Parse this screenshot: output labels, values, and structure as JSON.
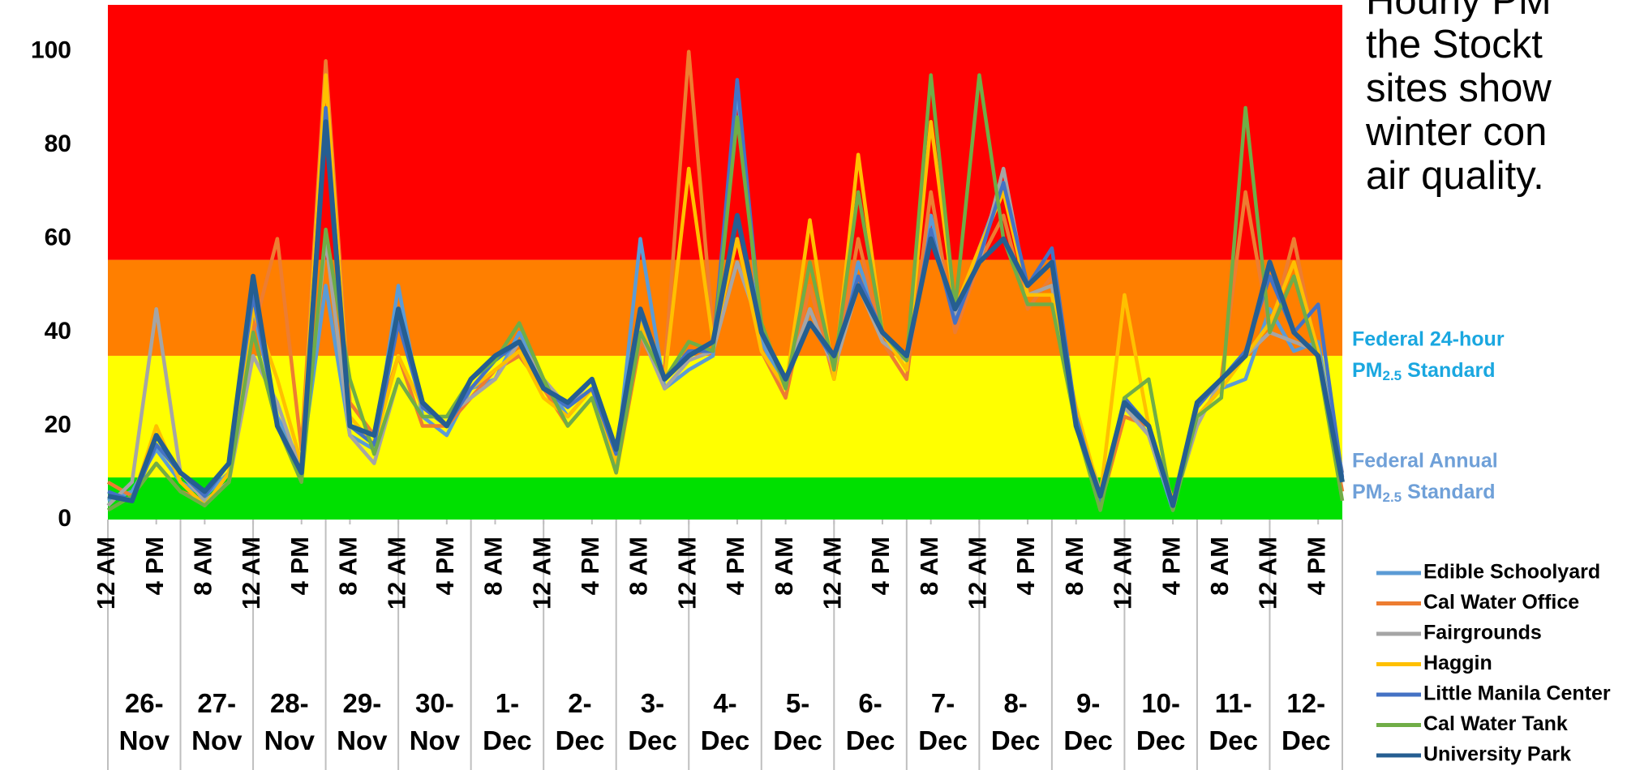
{
  "chart_data": {
    "type": "line",
    "annotation_lines": [
      "Hourly PM",
      "the Stockt",
      "sites show",
      "winter con",
      "air quality."
    ],
    "x": [
      0,
      8,
      16,
      24,
      32,
      40,
      48,
      56,
      64,
      72,
      80,
      88,
      96,
      104,
      112,
      120,
      128,
      136,
      144,
      152,
      160,
      168,
      176,
      184,
      192,
      200,
      208,
      216,
      224,
      232,
      240,
      248,
      256,
      264,
      272,
      280,
      288,
      296,
      304,
      312,
      320,
      328,
      336,
      344,
      352,
      360,
      368,
      376,
      384,
      392,
      400,
      408
    ],
    "xlim": [
      0,
      408
    ],
    "xticks": [
      {
        "value": 0,
        "label": "12 AM"
      },
      {
        "value": 16,
        "label": "4 PM"
      },
      {
        "value": 32,
        "label": "8 AM"
      },
      {
        "value": 48,
        "label": "12 AM"
      },
      {
        "value": 64,
        "label": "4 PM"
      },
      {
        "value": 80,
        "label": "8 AM"
      },
      {
        "value": 96,
        "label": "12 AM"
      },
      {
        "value": 112,
        "label": "4 PM"
      },
      {
        "value": 128,
        "label": "8 AM"
      },
      {
        "value": 144,
        "label": "12 AM"
      },
      {
        "value": 160,
        "label": "4 PM"
      },
      {
        "value": 176,
        "label": "8 AM"
      },
      {
        "value": 192,
        "label": "12 AM"
      },
      {
        "value": 208,
        "label": "4 PM"
      },
      {
        "value": 224,
        "label": "8 AM"
      },
      {
        "value": 240,
        "label": "12 AM"
      },
      {
        "value": 256,
        "label": "4 PM"
      },
      {
        "value": 272,
        "label": "8 AM"
      },
      {
        "value": 288,
        "label": "12 AM"
      },
      {
        "value": 304,
        "label": "4 PM"
      },
      {
        "value": 320,
        "label": "8 AM"
      },
      {
        "value": 336,
        "label": "12 AM"
      },
      {
        "value": 352,
        "label": "4 PM"
      },
      {
        "value": 368,
        "label": "8 AM"
      },
      {
        "value": 384,
        "label": "12 AM"
      },
      {
        "value": 400,
        "label": "4 PM"
      }
    ],
    "days": [
      "26- Nov",
      "27- Nov",
      "28- Nov",
      "29- Nov",
      "30- Nov",
      "1- Dec",
      "2- Dec",
      "3- Dec",
      "4- Dec",
      "5- Dec",
      "6- Dec",
      "7- Dec",
      "8- Dec",
      "9- Dec",
      "10- Dec",
      "11- Dec",
      "12- Dec"
    ],
    "ylim": [
      0,
      110
    ],
    "yticks": [
      0,
      20,
      40,
      60,
      80,
      100
    ],
    "bands": [
      {
        "from": 0,
        "to": 9,
        "color": "#00e000"
      },
      {
        "from": 9,
        "to": 35,
        "color": "#ffff00"
      },
      {
        "from": 35,
        "to": 55.5,
        "color": "#ff7f00"
      },
      {
        "from": 55.5,
        "to": 110,
        "color": "#ff0000"
      }
    ],
    "standards": [
      {
        "label": "Federal 24-hour",
        "pm": "PM",
        "sub": "2.5",
        "suffix": "Standard",
        "value": 35,
        "color": "#1aa7e0"
      },
      {
        "label": "Federal Annual",
        "pm": "PM",
        "sub": "2.5",
        "suffix": "Standard",
        "value": 9,
        "color": "#6fa0d8"
      }
    ],
    "series": [
      {
        "name": "Edible Schoolyard",
        "color": "#5b9bd5",
        "values": [
          4,
          6,
          15,
          8,
          5,
          10,
          45,
          22,
          12,
          50,
          18,
          15,
          50,
          22,
          18,
          28,
          30,
          40,
          30,
          22,
          28,
          12,
          60,
          28,
          32,
          35,
          92,
          38,
          28,
          45,
          33,
          55,
          40,
          32,
          65,
          42,
          58,
          72,
          48,
          50,
          22,
          4,
          25,
          18,
          2,
          22,
          28,
          30,
          45,
          36,
          38,
          8
        ]
      },
      {
        "name": "Cal Water Office",
        "color": "#ed7d31",
        "values": [
          8,
          5,
          12,
          6,
          4,
          8,
          40,
          60,
          15,
          98,
          25,
          18,
          35,
          20,
          20,
          26,
          32,
          35,
          28,
          20,
          26,
          10,
          38,
          32,
          100,
          40,
          60,
          36,
          26,
          50,
          30,
          60,
          38,
          30,
          70,
          40,
          55,
          65,
          45,
          52,
          20,
          3,
          22,
          20,
          4,
          24,
          30,
          70,
          40,
          60,
          34,
          6
        ]
      },
      {
        "name": "Fairgrounds",
        "color": "#a5a5a5",
        "values": [
          3,
          8,
          45,
          10,
          4,
          8,
          35,
          25,
          10,
          60,
          18,
          12,
          30,
          22,
          22,
          26,
          30,
          38,
          30,
          24,
          30,
          14,
          40,
          28,
          34,
          36,
          55,
          40,
          30,
          45,
          32,
          50,
          38,
          34,
          62,
          44,
          55,
          75,
          48,
          50,
          22,
          6,
          24,
          18,
          3,
          20,
          30,
          35,
          40,
          38,
          36,
          10
        ]
      },
      {
        "name": "Haggin",
        "color": "#ffc000",
        "values": [
          5,
          4,
          20,
          8,
          3,
          10,
          45,
          30,
          12,
          95,
          22,
          16,
          35,
          24,
          20,
          28,
          32,
          36,
          26,
          22,
          28,
          12,
          42,
          30,
          75,
          38,
          60,
          36,
          28,
          64,
          30,
          78,
          40,
          32,
          85,
          45,
          58,
          70,
          48,
          48,
          24,
          5,
          48,
          20,
          4,
          22,
          28,
          35,
          42,
          55,
          36,
          8
        ]
      },
      {
        "name": "Little Manila Center",
        "color": "#4472c4",
        "values": [
          6,
          4,
          16,
          10,
          5,
          12,
          48,
          20,
          10,
          88,
          20,
          16,
          42,
          24,
          20,
          28,
          34,
          38,
          28,
          24,
          28,
          14,
          44,
          30,
          36,
          36,
          94,
          40,
          30,
          42,
          34,
          52,
          40,
          34,
          62,
          42,
          56,
          72,
          50,
          58,
          22,
          4,
          26,
          20,
          3,
          24,
          30,
          36,
          52,
          40,
          46,
          9
        ]
      },
      {
        "name": "Cal Water Tank",
        "color": "#70ad47",
        "values": [
          2,
          5,
          12,
          6,
          3,
          8,
          40,
          20,
          8,
          62,
          30,
          14,
          30,
          22,
          22,
          30,
          34,
          42,
          30,
          20,
          26,
          10,
          40,
          30,
          38,
          36,
          86,
          42,
          28,
          55,
          32,
          70,
          40,
          34,
          95,
          45,
          95,
          60,
          46,
          46,
          20,
          2,
          26,
          30,
          2,
          22,
          26,
          88,
          40,
          52,
          34,
          4
        ]
      },
      {
        "name": "University Park",
        "color": "#255e91",
        "values": [
          5,
          4,
          18,
          10,
          6,
          12,
          52,
          20,
          10,
          85,
          20,
          18,
          45,
          25,
          20,
          30,
          35,
          38,
          28,
          25,
          30,
          15,
          45,
          30,
          35,
          38,
          65,
          40,
          30,
          42,
          35,
          50,
          40,
          35,
          60,
          45,
          55,
          60,
          50,
          55,
          20,
          5,
          25,
          20,
          3,
          25,
          30,
          35,
          55,
          40,
          35,
          8
        ]
      }
    ]
  }
}
